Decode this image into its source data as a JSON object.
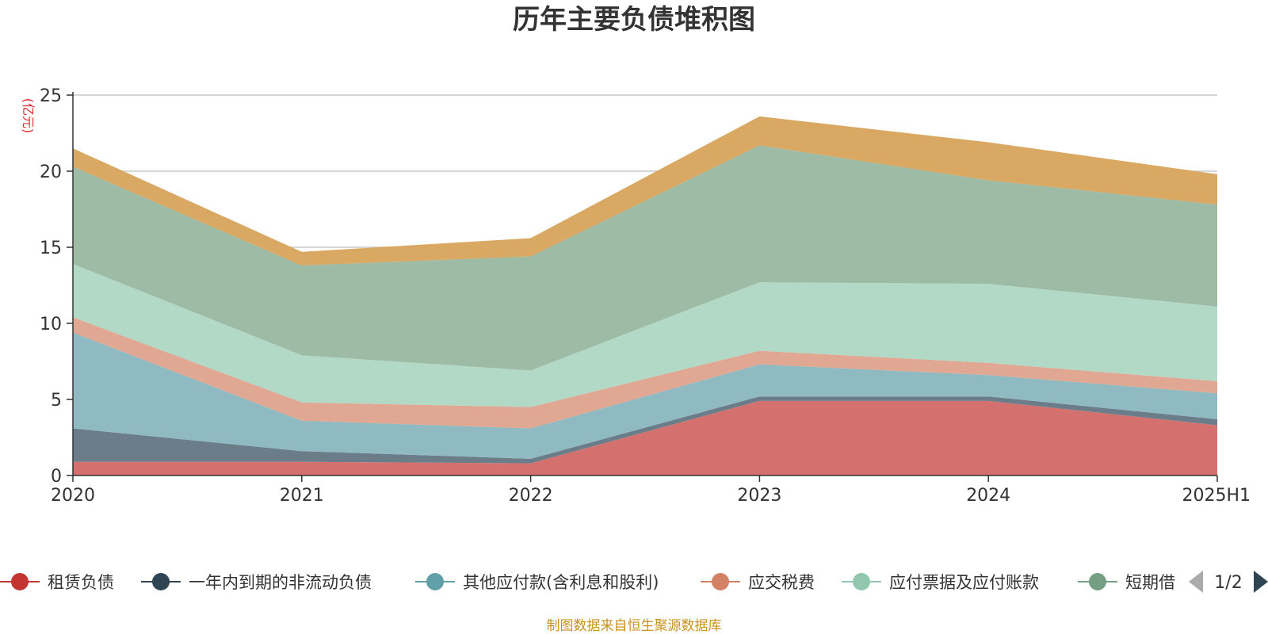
{
  "chart_data": {
    "type": "area",
    "stacked": true,
    "title": "历年主要负债堆积图",
    "y_unit": "(亿元)",
    "categories": [
      "2020",
      "2021",
      "2022",
      "2023",
      "2024",
      "2025H1"
    ],
    "ylim": [
      0,
      25
    ],
    "yticks": [
      0,
      5,
      10,
      15,
      20,
      25
    ],
    "grid": true,
    "series": [
      {
        "name": "租赁负债",
        "color": "#d4706d",
        "values": [
          0.9,
          0.9,
          0.8,
          4.9,
          4.9,
          3.3
        ]
      },
      {
        "name": "一年内到期的非流动负债",
        "color": "#6b7d89",
        "values": [
          2.2,
          0.7,
          0.3,
          0.3,
          0.3,
          0.4
        ]
      },
      {
        "name": "其他应付款(含利息和股利)",
        "color": "#8fbac1",
        "values": [
          6.3,
          2.0,
          2.0,
          2.1,
          1.4,
          1.7
        ]
      },
      {
        "name": "应交税费",
        "color": "#e0a792",
        "values": [
          1.0,
          1.2,
          1.4,
          0.9,
          0.8,
          0.8
        ]
      },
      {
        "name": "应付票据及应付账款",
        "color": "#b2d8c6",
        "values": [
          3.5,
          3.1,
          2.4,
          4.5,
          5.2,
          4.9
        ]
      },
      {
        "name": "短期借款",
        "color": "#9dbba5",
        "values": [
          6.4,
          5.9,
          7.5,
          9.0,
          6.8,
          6.7
        ]
      },
      {
        "name": "",
        "color": "#d9a862",
        "values": [
          1.2,
          0.9,
          1.2,
          1.9,
          2.5,
          2.0
        ]
      }
    ]
  },
  "legend": {
    "visible_items": [
      {
        "label": "租赁负债",
        "color": "#c23531"
      },
      {
        "label": "一年内到期的非流动负债",
        "color": "#2f4554"
      },
      {
        "label": "其他应付款(含利息和股利)",
        "color": "#61a0a8"
      },
      {
        "label": "应交税费",
        "color": "#d48265"
      },
      {
        "label": "应付票据及应付账款",
        "color": "#91c7ae"
      },
      {
        "label": "短期借",
        "color": "#749f83"
      }
    ],
    "page_indicator": "1/2",
    "prev_icon": "triangle-left-icon",
    "next_icon": "triangle-right-icon"
  },
  "source_note": "制图数据来自恒生聚源数据库"
}
